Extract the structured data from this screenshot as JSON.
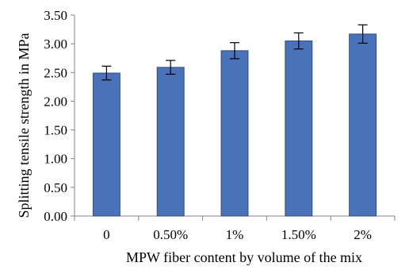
{
  "chart_data": {
    "type": "bar",
    "categories": [
      "0",
      "0.50%",
      "1%",
      "1.50%",
      "2%"
    ],
    "values": [
      2.49,
      2.59,
      2.88,
      3.05,
      3.17
    ],
    "error": [
      0.12,
      0.12,
      0.14,
      0.14,
      0.16
    ],
    "xlabel": "MPW fiber content by volume of the mix",
    "ylabel": "Splitting tensile strength in MPa",
    "ylim": [
      0,
      3.5
    ],
    "yticks": [
      "0.00",
      "0.50",
      "1.00",
      "1.50",
      "2.00",
      "2.50",
      "3.00",
      "3.50"
    ],
    "grid": false,
    "bar_color": "#4a72b8",
    "bar_edge_color": "#2e4f86"
  }
}
